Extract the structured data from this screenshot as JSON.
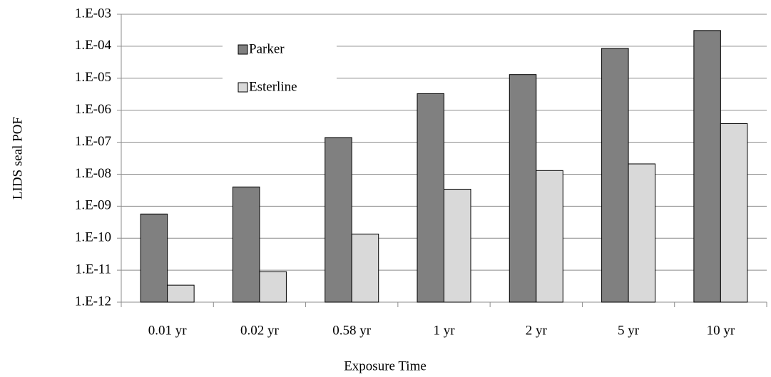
{
  "chart_data": {
    "type": "bar",
    "log_scale": true,
    "grid": true,
    "legend": "top-left",
    "x_label": "Exposure Time",
    "y_label": "LIDS seal POF",
    "categories": [
      "0.01 yr",
      "0.02 yr",
      "0.58 yr",
      "1 yr",
      "2 yr",
      "5 yr",
      "10 yr"
    ],
    "series": [
      {
        "name": "Parker",
        "color": "#808080",
        "values": [
          5.7e-10,
          4e-09,
          1.4e-07,
          3.3e-06,
          1.3e-05,
          8.6e-05,
          0.00031
        ]
      },
      {
        "name": "Esterline",
        "color": "#d9d9d9",
        "values": [
          3.4e-12,
          9e-12,
          1.35e-10,
          3.4e-09,
          1.3e-08,
          2.1e-08,
          3.8e-07
        ]
      }
    ],
    "ylim": [
      1e-12,
      0.001
    ],
    "yticks": [
      {
        "value": 1e-12,
        "label": "1.E-12"
      },
      {
        "value": 1e-11,
        "label": "1.E-11"
      },
      {
        "value": 1e-10,
        "label": "1.E-10"
      },
      {
        "value": 1e-09,
        "label": "1.E-09"
      },
      {
        "value": 1e-08,
        "label": "1.E-08"
      },
      {
        "value": 1e-07,
        "label": "1.E-07"
      },
      {
        "value": 1e-06,
        "label": "1.E-06"
      },
      {
        "value": 1e-05,
        "label": "1.E-05"
      },
      {
        "value": 0.0001,
        "label": "1.E-04"
      },
      {
        "value": 0.001,
        "label": "1.E-03"
      }
    ]
  }
}
